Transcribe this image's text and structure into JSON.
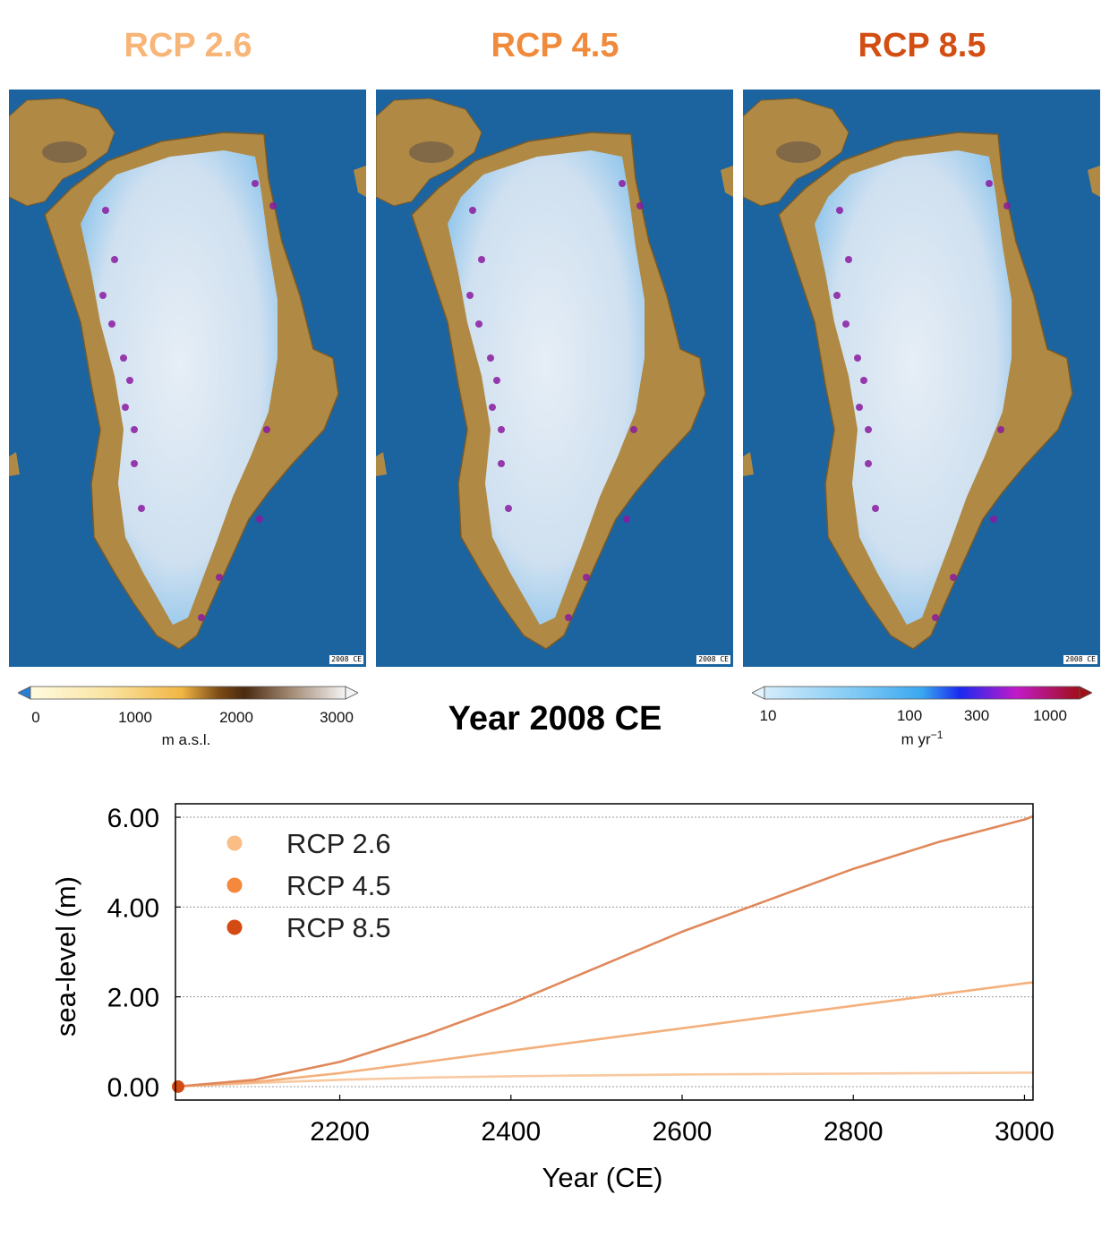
{
  "scenario_titles": [
    {
      "label": "RCP 2.6",
      "color": "#f8b578"
    },
    {
      "label": "RCP 4.5",
      "color": "#f08a3c"
    },
    {
      "label": "RCP 8.5",
      "color": "#d24e12"
    }
  ],
  "map_year_stamp": "2008 CE",
  "heading": "Year 2008 CE",
  "elevation_colorbar": {
    "ticks": [
      "0",
      "1000",
      "2000",
      "3000"
    ],
    "unit": "m a.s.l."
  },
  "velocity_colorbar": {
    "ticks": [
      "10",
      "100",
      "300",
      "1000"
    ],
    "unit_base": "m yr",
    "unit_exp": "−1"
  },
  "colors": {
    "ocean": "#1c64a0",
    "ice": "#cfe2f2",
    "rock": "#b08a44",
    "grid": "#999999"
  },
  "chart_data": {
    "type": "line",
    "xlabel": "Year (CE)",
    "ylabel": "sea-level (m)",
    "xlim": [
      2008,
      3010
    ],
    "ylim": [
      -0.3,
      6.3
    ],
    "xticks": [
      "2200",
      "2400",
      "2600",
      "2800",
      "3000"
    ],
    "yticks": [
      "0.00",
      "2.00",
      "4.00",
      "6.00"
    ],
    "grid": "horizontal dotted",
    "legend_position": "top-left",
    "series": [
      {
        "name": "RCP 2.6",
        "color": "#f8c9a0",
        "x": [
          2008,
          2100,
          2200,
          2300,
          2400,
          2500,
          2600,
          2700,
          2800,
          2900,
          3000,
          3010
        ],
        "y": [
          0.0,
          0.08,
          0.15,
          0.2,
          0.23,
          0.25,
          0.27,
          0.28,
          0.29,
          0.3,
          0.31,
          0.31
        ]
      },
      {
        "name": "RCP 4.5",
        "color": "#f4b07c",
        "x": [
          2008,
          2100,
          2200,
          2300,
          2400,
          2500,
          2600,
          2700,
          2800,
          2900,
          3000,
          3010
        ],
        "y": [
          0.0,
          0.1,
          0.3,
          0.55,
          0.8,
          1.05,
          1.3,
          1.55,
          1.8,
          2.05,
          2.3,
          2.32
        ]
      },
      {
        "name": "RCP 8.5",
        "color": "#e0885a",
        "x": [
          2008,
          2100,
          2200,
          2300,
          2400,
          2500,
          2600,
          2700,
          2800,
          2900,
          3000,
          3010
        ],
        "y": [
          0.0,
          0.15,
          0.55,
          1.15,
          1.85,
          2.65,
          3.45,
          4.15,
          4.85,
          5.45,
          5.95,
          6.02
        ]
      }
    ],
    "legend_markers": [
      "#fbbd86",
      "#f4883c",
      "#d34b12"
    ]
  }
}
